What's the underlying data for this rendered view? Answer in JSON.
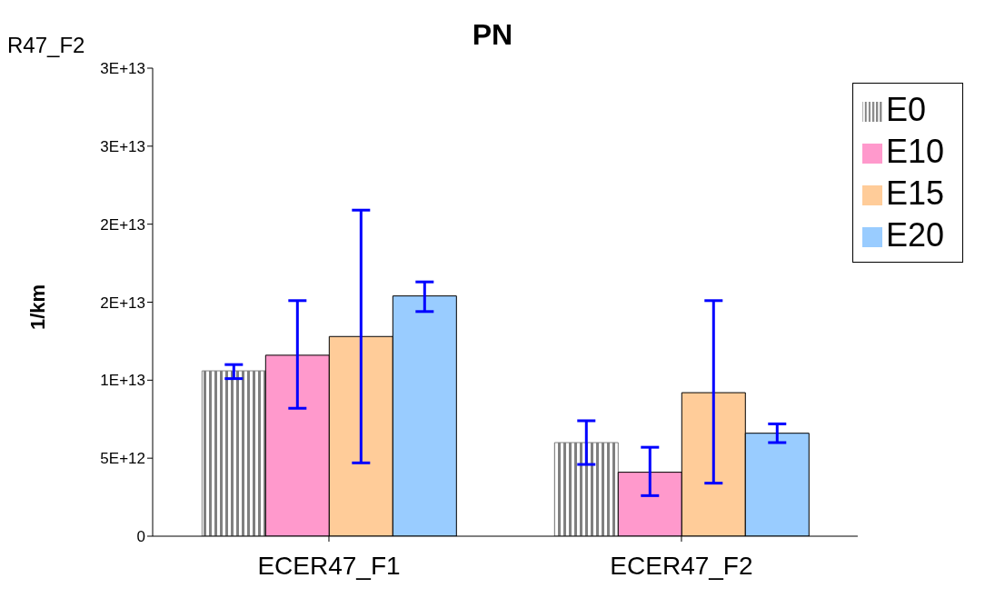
{
  "chart_data": {
    "type": "bar",
    "title": "PN",
    "ylabel": "1/km",
    "categories": [
      "ECER47_F1",
      "ECER47_F2"
    ],
    "series": [
      {
        "name": "E0",
        "color": "#808080",
        "values": [
          10600000000000.0,
          6000000000000.0
        ],
        "errors": [
          [
            10100000000000.0,
            11000000000000.0
          ],
          [
            4600000000000.0,
            7400000000000.0
          ]
        ]
      },
      {
        "name": "E10",
        "color": "#ff99cc",
        "values": [
          11600000000000.0,
          4100000000000.0
        ],
        "errors": [
          [
            8200000000000.0,
            15100000000000.0
          ],
          [
            2600000000000.0,
            5700000000000.0
          ]
        ]
      },
      {
        "name": "E15",
        "color": "#ffcc99",
        "values": [
          12800000000000.0,
          9200000000000.0
        ],
        "errors": [
          [
            4700000000000.0,
            20900000000000.0
          ],
          [
            3400000000000.0,
            15100000000000.0
          ]
        ]
      },
      {
        "name": "E20",
        "color": "#99ccff",
        "values": [
          15400000000000.0,
          6600000000000.0
        ],
        "errors": [
          [
            14400000000000.0,
            16300000000000.0
          ],
          [
            6000000000000.0,
            7200000000000.0
          ]
        ]
      }
    ],
    "ylim": [
      0,
      30000000000000.0
    ],
    "yticks": [
      0,
      {
        "value": 5000000000000.0,
        "label": "5E+12"
      },
      {
        "value": 10000000000000.0,
        "label": "1E+13"
      },
      {
        "value": 15000000000000.0,
        "label": "2E+13"
      },
      {
        "value": 20000000000000.0,
        "label": "2E+13"
      },
      {
        "value": 25000000000000.0,
        "label": "3E+13"
      },
      {
        "value": 30000000000000.0,
        "label": "3E+13"
      }
    ],
    "grid": false,
    "legend": "top right",
    "annotations": [
      "R47_F2"
    ]
  }
}
